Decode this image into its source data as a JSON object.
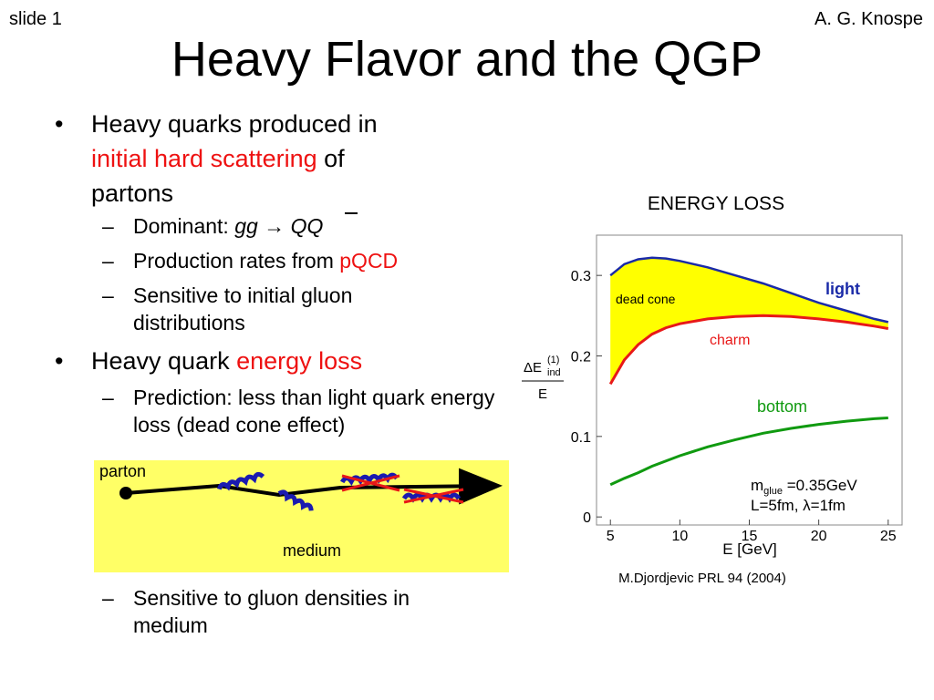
{
  "header": {
    "slide_label": "slide 1",
    "author": "A. G. Knospe"
  },
  "title": "Heavy Flavor and the QGP",
  "bullets": {
    "b1_line1": "Heavy quarks produced in",
    "b1_red": "initial hard scattering",
    "b1_after_red": " of",
    "b1_line3": "partons",
    "sub1_prefix": "Dominant: ",
    "sub1_formula": "gg → QQ",
    "sub2_prefix": "Production rates from ",
    "sub2_red": "pQCD",
    "sub3": "Sensitive to initial gluon distributions",
    "b2_prefix": "Heavy quark ",
    "b2_red": "energy loss",
    "sub4": "Prediction: less than light quark energy loss (dead cone effect)",
    "sub5": "Sensitive to gluon densities in medium",
    "bullet_char": "•",
    "dash_char": "–"
  },
  "diagram": {
    "parton_label": "parton",
    "medium_label": "medium",
    "background": "#ffff66"
  },
  "chart_title": "ENERGY LOSS",
  "citation": "M.Djordjevic PRL 94 (2004)",
  "colors": {
    "red": "#ee1111",
    "light": "#1a2aa8",
    "charm": "#e81818",
    "bottom": "#109a10",
    "fill": "#ffff00"
  },
  "chart_data": {
    "type": "line",
    "xlabel": "E [GeV]",
    "ylabel": "ΔE_ind^(1) / E",
    "xlim": [
      4,
      26
    ],
    "ylim": [
      -0.01,
      0.35
    ],
    "xticks": [
      5,
      10,
      15,
      20,
      25
    ],
    "yticks": [
      0,
      0.1,
      0.2,
      0.3
    ],
    "ytick_labels": [
      "0",
      "0.1",
      "0.2",
      "0.3"
    ],
    "series": [
      {
        "name": "light",
        "color": "#1a2aa8",
        "x": [
          5,
          6,
          7,
          8,
          9,
          10,
          12,
          14,
          16,
          18,
          20,
          22,
          24,
          25
        ],
        "y": [
          0.3,
          0.314,
          0.32,
          0.322,
          0.321,
          0.318,
          0.31,
          0.3,
          0.29,
          0.278,
          0.266,
          0.256,
          0.246,
          0.242
        ]
      },
      {
        "name": "charm",
        "color": "#e81818",
        "x": [
          5,
          6,
          7,
          8,
          9,
          10,
          12,
          14,
          16,
          18,
          20,
          22,
          24,
          25
        ],
        "y": [
          0.165,
          0.195,
          0.214,
          0.227,
          0.235,
          0.24,
          0.246,
          0.249,
          0.25,
          0.249,
          0.246,
          0.242,
          0.237,
          0.234
        ]
      },
      {
        "name": "bottom",
        "color": "#109a10",
        "x": [
          5,
          6,
          7,
          8,
          10,
          12,
          14,
          16,
          18,
          20,
          22,
          24,
          25
        ],
        "y": [
          0.04,
          0.048,
          0.055,
          0.063,
          0.076,
          0.087,
          0.096,
          0.104,
          0.11,
          0.115,
          0.119,
          0.122,
          0.123
        ]
      }
    ],
    "annotations": {
      "dead_cone": "dead cone",
      "light": "light",
      "charm": "charm",
      "bottom": "bottom",
      "ylabel_top": "ΔE",
      "ylabel_sup": "(1)",
      "ylabel_sub": "ind",
      "ylabel_bottom": "E",
      "mglue_prefix": "m",
      "mglue_sub": "glue",
      "mglue_value": " =0.35GeV",
      "params_line": "L=5fm, λ=1fm"
    }
  }
}
